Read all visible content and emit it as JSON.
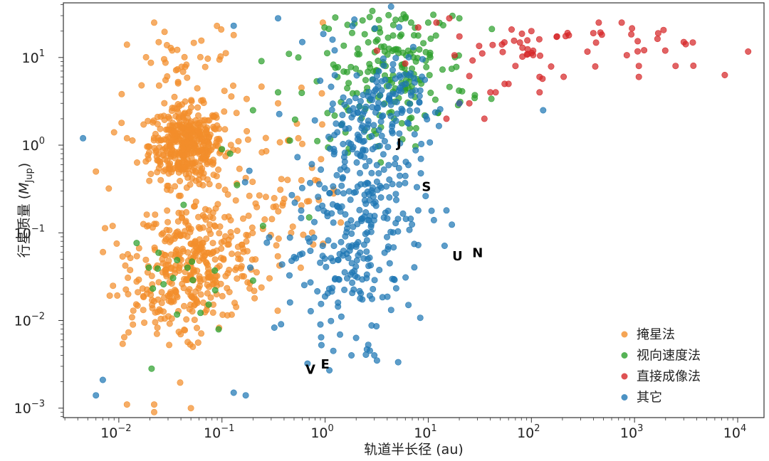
{
  "chart_data": {
    "type": "scatter",
    "xscale": "log",
    "yscale": "log",
    "xlim": [
      0.0029,
      18000
    ],
    "ylim": [
      0.00078,
      42
    ],
    "xlabel": "轨道半长径 (au)",
    "ylabel_prefix": "行星质量 (",
    "ylabel_symbol": "M",
    "ylabel_sub": "Jup",
    "ylabel_suffix": ")",
    "x_ticks": [
      {
        "value": 0.01,
        "base": "10",
        "exp": "−2"
      },
      {
        "value": 0.1,
        "base": "10",
        "exp": "−1"
      },
      {
        "value": 1,
        "base": "10",
        "exp": "0"
      },
      {
        "value": 10,
        "base": "10",
        "exp": "1"
      },
      {
        "value": 100,
        "base": "10",
        "exp": "2"
      },
      {
        "value": 1000,
        "base": "10",
        "exp": "3"
      },
      {
        "value": 10000,
        "base": "10",
        "exp": "4"
      }
    ],
    "y_ticks": [
      {
        "value": 0.001,
        "base": "10",
        "exp": "−3"
      },
      {
        "value": 0.01,
        "base": "10",
        "exp": "−2"
      },
      {
        "value": 0.1,
        "base": "10",
        "exp": "−1"
      },
      {
        "value": 1,
        "base": "10",
        "exp": "0"
      },
      {
        "value": 10,
        "base": "10",
        "exp": "1"
      }
    ],
    "legend_position": "bottom-right",
    "series": [
      {
        "name": "掩星法",
        "color": "#f28e2b",
        "clusters": [
          {
            "cx": 0.045,
            "cy": 1.0,
            "sx": 0.18,
            "sy": 0.22,
            "n": 420
          },
          {
            "cx": 0.06,
            "cy": 0.05,
            "sx": 0.32,
            "sy": 0.35,
            "n": 300
          },
          {
            "cx": 0.025,
            "cy": 0.02,
            "sx": 0.25,
            "sy": 0.3,
            "n": 90
          },
          {
            "cx": 0.3,
            "cy": 0.3,
            "sx": 0.35,
            "sy": 0.55,
            "n": 70
          },
          {
            "cx": 0.05,
            "cy": 8.0,
            "sx": 0.3,
            "sy": 0.25,
            "n": 40
          }
        ],
        "points": [
          {
            "x": 0.022,
            "y": 25
          },
          {
            "x": 0.012,
            "y": 14
          },
          {
            "x": 0.006,
            "y": 0.5
          },
          {
            "x": 0.008,
            "y": 0.32
          },
          {
            "x": 0.022,
            "y": 0.0011
          },
          {
            "x": 0.012,
            "y": 0.0011
          },
          {
            "x": 0.022,
            "y": 0.0009
          },
          {
            "x": 0.05,
            "y": 0.001
          },
          {
            "x": 0.009,
            "y": 1.4
          },
          {
            "x": 0.012,
            "y": 1.2
          },
          {
            "x": 0.95,
            "y": 25
          },
          {
            "x": 0.13,
            "y": 18
          },
          {
            "x": 0.35,
            "y": 3
          },
          {
            "x": 0.55,
            "y": 1.2
          },
          {
            "x": 0.8,
            "y": 0.4
          }
        ]
      },
      {
        "name": "视向速度法",
        "color": "#2ca02c",
        "clusters": [
          {
            "cx": 5.0,
            "cy": 8.0,
            "sx": 0.35,
            "sy": 0.35,
            "n": 170
          },
          {
            "cx": 2.0,
            "cy": 2.5,
            "sx": 0.3,
            "sy": 0.2,
            "n": 30
          },
          {
            "cx": 0.05,
            "cy": 0.03,
            "sx": 0.3,
            "sy": 0.35,
            "n": 20
          }
        ],
        "points": [
          {
            "x": 0.55,
            "y": 10
          },
          {
            "x": 0.12,
            "y": 0.8
          },
          {
            "x": 0.1,
            "y": 0.9
          },
          {
            "x": 0.14,
            "y": 0.35
          },
          {
            "x": 0.2,
            "y": 2.5
          },
          {
            "x": 0.35,
            "y": 4
          },
          {
            "x": 0.25,
            "y": 0.12
          },
          {
            "x": 0.7,
            "y": 0.15
          },
          {
            "x": 10,
            "y": 25
          },
          {
            "x": 20,
            "y": 28
          }
        ]
      },
      {
        "name": "直接成像法",
        "color": "#d62728",
        "clusters": [
          {
            "cx": 150,
            "cy": 13,
            "sx": 0.7,
            "sy": 0.15,
            "n": 55
          }
        ],
        "points": [
          {
            "x": 8,
            "y": 22
          },
          {
            "x": 12,
            "y": 25
          },
          {
            "x": 16,
            "y": 28
          },
          {
            "x": 20,
            "y": 3
          },
          {
            "x": 25,
            "y": 3
          },
          {
            "x": 35,
            "y": 2
          },
          {
            "x": 15,
            "y": 2
          },
          {
            "x": 40,
            "y": 4
          },
          {
            "x": 45,
            "y": 4
          },
          {
            "x": 55,
            "y": 5
          },
          {
            "x": 60,
            "y": 5
          },
          {
            "x": 70,
            "y": 8
          },
          {
            "x": 100,
            "y": 20
          },
          {
            "x": 120,
            "y": 4
          },
          {
            "x": 120,
            "y": 6
          },
          {
            "x": 7500,
            "y": 6.3
          },
          {
            "x": 3000,
            "y": 15
          },
          {
            "x": 2500,
            "y": 8
          },
          {
            "x": 1100,
            "y": 8
          },
          {
            "x": 750,
            "y": 25
          },
          {
            "x": 450,
            "y": 25
          },
          {
            "x": 1100,
            "y": 6
          }
        ]
      },
      {
        "name": "其它",
        "color": "#1f77b4",
        "clusters": [
          {
            "cx": 2.5,
            "cy": 0.25,
            "sx": 0.28,
            "sy": 0.75,
            "n": 280
          },
          {
            "cx": 3.5,
            "cy": 3.0,
            "sx": 0.2,
            "sy": 0.25,
            "n": 90
          },
          {
            "cx": 1.0,
            "cy": 0.05,
            "sx": 0.3,
            "sy": 0.55,
            "n": 70
          }
        ],
        "points": [
          {
            "x": 0.0045,
            "y": 1.2
          },
          {
            "x": 0.006,
            "y": 0.0014
          },
          {
            "x": 0.007,
            "y": 0.0021
          },
          {
            "x": 0.13,
            "y": 0.0015
          },
          {
            "x": 0.17,
            "y": 0.0014
          },
          {
            "x": 0.13,
            "y": 23
          },
          {
            "x": 0.35,
            "y": 28
          },
          {
            "x": 0.6,
            "y": 15
          },
          {
            "x": 130,
            "y": 2.5
          },
          {
            "x": 15,
            "y": 0.18
          },
          {
            "x": 8,
            "y": 0.18
          },
          {
            "x": 20,
            "y": 3
          },
          {
            "x": 1.1,
            "y": 0.0027
          },
          {
            "x": 1.2,
            "y": 0.0045
          },
          {
            "x": 3,
            "y": 0.004
          },
          {
            "x": 1.8,
            "y": 0.004
          },
          {
            "x": 0.9,
            "y": 0.009
          }
        ]
      }
    ],
    "annotations": [
      {
        "label": "V",
        "x": 0.72,
        "y": 0.0027
      },
      {
        "label": "E",
        "x": 1.0,
        "y": 0.0031
      },
      {
        "label": "J",
        "x": 5.2,
        "y": 1.03
      },
      {
        "label": "S",
        "x": 9.6,
        "y": 0.33
      },
      {
        "label": "U",
        "x": 19.2,
        "y": 0.053
      },
      {
        "label": "N",
        "x": 30.1,
        "y": 0.058
      }
    ]
  }
}
